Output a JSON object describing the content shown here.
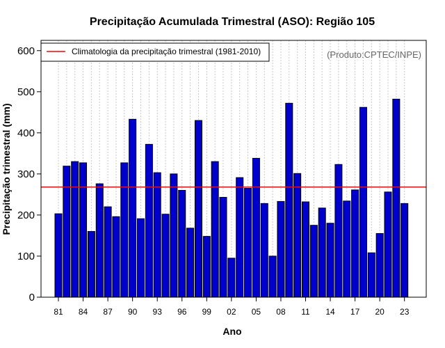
{
  "chart_data": {
    "type": "bar",
    "title": "Precipitação Acumulada Trimestral (ASO): Região 105",
    "xlabel": "Ano",
    "ylabel": "Precipitação trimestral (mm)",
    "ylim": [
      0,
      625
    ],
    "yticks": [
      0,
      100,
      200,
      300,
      400,
      500,
      600
    ],
    "categories": [
      "1981",
      "1982",
      "1983",
      "1984",
      "1985",
      "1986",
      "1987",
      "1988",
      "1989",
      "1990",
      "1991",
      "1992",
      "1993",
      "1994",
      "1995",
      "1996",
      "1997",
      "1998",
      "1999",
      "2000",
      "2001",
      "2002",
      "2003",
      "2004",
      "2005",
      "2006",
      "2007",
      "2008",
      "2009",
      "2010",
      "2011",
      "2012",
      "2013",
      "2014",
      "2015",
      "2016",
      "2017",
      "2018",
      "2019",
      "2020",
      "2021",
      "2022",
      "2023"
    ],
    "xtick_labels": [
      "81",
      "84",
      "87",
      "90",
      "93",
      "96",
      "99",
      "02",
      "05",
      "08",
      "11",
      "14",
      "17",
      "20",
      "23"
    ],
    "values": [
      203,
      319,
      330,
      327,
      160,
      276,
      220,
      196,
      327,
      433,
      191,
      372,
      303,
      202,
      300,
      260,
      168,
      430,
      148,
      330,
      243,
      95,
      291,
      265,
      338,
      228,
      100,
      233,
      472,
      301,
      232,
      175,
      217,
      180,
      323,
      234,
      261,
      462,
      108,
      155,
      256,
      482,
      228
    ],
    "bar_color": "#0000cd",
    "reference_line": {
      "label": "Climatologia da precipitação trimestral (1981-2010)",
      "value": 268,
      "color": "#ff0000"
    },
    "legend_position": "top-left",
    "credit": "(Produto:CPTEC/INPE)",
    "grid": "vertical dotted"
  }
}
